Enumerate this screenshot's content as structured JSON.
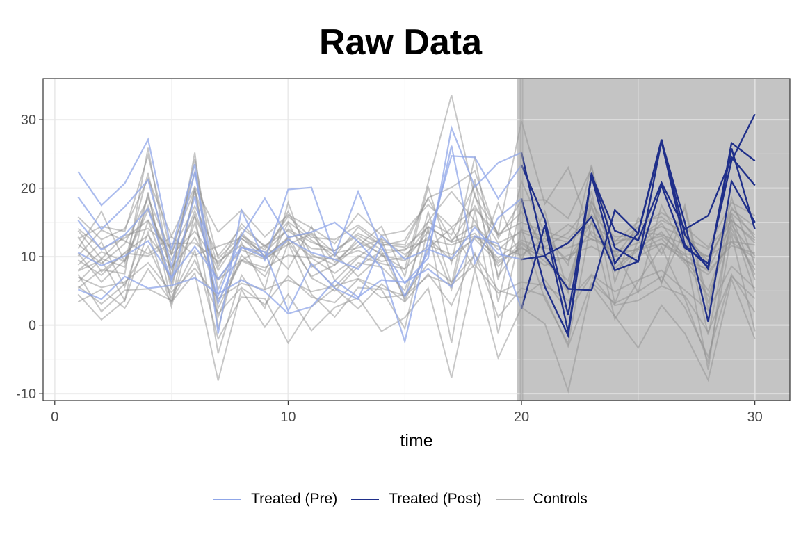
{
  "chart_data": {
    "type": "line",
    "title": "Raw Data",
    "xlabel": "time",
    "ylabel": "",
    "xlim": [
      -0.5,
      31.5
    ],
    "ylim": [
      -11,
      36
    ],
    "x_ticks": [
      0,
      10,
      20,
      30
    ],
    "y_ticks": [
      -10,
      0,
      10,
      20,
      30
    ],
    "grid": true,
    "legend_position": "bottom",
    "shaded_period": [
      19.8,
      31.5
    ],
    "intervention_line": 20,
    "colors": {
      "pre": "#8fa6e8",
      "post": "#1f2f8a",
      "controls": "#909090",
      "shade": "#c4c4c4"
    },
    "legend": [
      {
        "label": "Treated (Pre)",
        "color": "#8fa6e8"
      },
      {
        "label": "Treated (Post)",
        "color": "#1f2f8a"
      },
      {
        "label": "Controls",
        "color": "#b0b0b0"
      }
    ],
    "x": [
      1,
      2,
      3,
      4,
      5,
      6,
      7,
      8,
      9,
      10,
      11,
      12,
      13,
      14,
      15,
      16,
      17,
      18,
      19,
      20,
      21,
      22,
      23,
      24,
      25,
      26,
      27,
      28,
      29,
      30
    ],
    "treated_series": [
      {
        "values": [
          22.4,
          17.5,
          20.7,
          27.1,
          11.0,
          23.5,
          -1.2,
          16.8,
          9.5,
          19.8,
          20.1,
          10.2,
          19.5,
          11.4,
          6.1,
          9.8,
          28.8,
          20.2,
          23.7,
          25.2,
          10.2,
          12.0,
          15.8,
          8.0,
          9.3,
          20.4,
          11.3,
          9.0,
          24.0,
          30.8
        ]
      },
      {
        "values": [
          18.7,
          14.0,
          17.3,
          21.2,
          8.6,
          22.3,
          4.3,
          13.1,
          18.5,
          12.8,
          13.6,
          15.0,
          12.2,
          8.4,
          -2.4,
          12.4,
          24.7,
          24.5,
          18.5,
          23.4,
          15.4,
          1.5,
          21.8,
          9.0,
          13.5,
          27.1,
          13.2,
          8.2,
          26.6,
          24.0
        ]
      },
      {
        "values": [
          15.3,
          11.0,
          13.2,
          17.0,
          6.4,
          18.8,
          3.2,
          11.3,
          10.7,
          2.1,
          9.0,
          5.4,
          3.8,
          11.7,
          4.2,
          10.7,
          26.2,
          9.1,
          15.7,
          18.5,
          5.6,
          -1.5,
          21.9,
          13.8,
          12.4,
          20.8,
          14.0,
          16.0,
          24.5,
          20.4
        ]
      },
      {
        "values": [
          10.6,
          8.7,
          10.1,
          12.3,
          7.0,
          11.5,
          6.7,
          11.4,
          9.9,
          12.5,
          10.6,
          9.6,
          8.2,
          13.0,
          9.6,
          11.1,
          9.7,
          14.3,
          10.4,
          9.6,
          10.1,
          5.3,
          5.1,
          16.8,
          13.4,
          26.8,
          11.7,
          8.5,
          25.8,
          14.0
        ]
      },
      {
        "values": [
          5.2,
          3.8,
          7.1,
          5.4,
          5.8,
          6.9,
          4.6,
          6.6,
          4.9,
          1.7,
          2.7,
          6.5,
          4.1,
          6.6,
          6.3,
          8.2,
          5.6,
          13.0,
          11.9,
          2.4,
          14.6,
          -1.0,
          22.2,
          11.3,
          9.3,
          26.9,
          15.0,
          0.5,
          21.0,
          15.0
        ]
      }
    ],
    "control_series": [
      {
        "values": [
          7.9,
          9.5,
          3.6,
          19.4,
          3.1,
          20.0,
          1.2,
          10.2,
          7.1,
          13.0,
          6.9,
          5.0,
          8.6,
          10.8,
          3.9,
          16.5,
          6.0,
          21.3,
          3.4,
          17.5,
          10.2,
          5.4,
          19.6,
          3.1,
          12.5,
          6.3,
          13.8,
          -1.4,
          15.2,
          4.8
        ]
      },
      {
        "values": [
          11.2,
          16.6,
          9.2,
          22.2,
          7.2,
          24.3,
          5.2,
          13.5,
          10.0,
          16.6,
          10.3,
          8.8,
          11.6,
          14.4,
          7.1,
          20.2,
          9.1,
          24.6,
          6.6,
          21.0,
          13.4,
          8.8,
          23.4,
          6.3,
          15.7,
          10.4,
          17.0,
          2.3,
          18.6,
          8.8
        ]
      },
      {
        "values": [
          14.1,
          11.2,
          12.7,
          15.3,
          10.3,
          13.7,
          9.0,
          12.6,
          10.6,
          14.0,
          12.1,
          10.9,
          13.4,
          11.8,
          11.4,
          14.3,
          12.2,
          17.4,
          12.0,
          13.6,
          12.2,
          14.7,
          12.5,
          11.7,
          13.6,
          13.2,
          11.8,
          10.0,
          15.2,
          12.4
        ]
      },
      {
        "values": [
          7.0,
          5.5,
          6.3,
          9.1,
          4.8,
          8.3,
          3.9,
          6.1,
          5.2,
          6.6,
          4.9,
          5.7,
          6.8,
          5.4,
          4.3,
          7.2,
          5.9,
          8.8,
          4.7,
          6.3,
          5.8,
          3.6,
          7.4,
          4.9,
          6.6,
          8.0,
          5.1,
          2.2,
          8.6,
          5.4
        ]
      },
      {
        "values": [
          9.5,
          7.3,
          10.6,
          13.1,
          8.4,
          12.8,
          6.6,
          9.5,
          8.4,
          10.2,
          9.8,
          7.6,
          10.1,
          9.0,
          8.2,
          11.7,
          10.3,
          12.6,
          9.1,
          11.4,
          8.7,
          10.2,
          11.5,
          9.6,
          10.0,
          11.9,
          9.5,
          7.4,
          12.1,
          9.8
        ]
      },
      {
        "values": [
          3.4,
          5.2,
          2.5,
          8.2,
          3.4,
          7.6,
          -8.1,
          5.2,
          -0.3,
          4.5,
          -0.8,
          2.6,
          4.0,
          -0.9,
          1.1,
          5.4,
          -7.7,
          8.1,
          -4.8,
          2.6,
          0.2,
          -9.6,
          5.9,
          1.3,
          -3.3,
          2.9,
          -1.2,
          -8.0,
          6.7,
          -2.0
        ]
      },
      {
        "values": [
          5.4,
          8.1,
          7.5,
          25.9,
          6.6,
          25.2,
          -0.5,
          12.1,
          5.3,
          17.9,
          8.5,
          10.4,
          7.1,
          10.2,
          8.2,
          20.8,
          33.6,
          18.7,
          13.4,
          29.8,
          17.7,
          23.0,
          13.1,
          10.6,
          4.8,
          17.5,
          11.1,
          -6.5,
          17.2,
          12.7
        ]
      },
      {
        "values": [
          12.6,
          14.4,
          13.7,
          24.8,
          10.2,
          22.4,
          9.7,
          13.1,
          11.0,
          15.9,
          12.8,
          12.5,
          14.6,
          12.1,
          11.7,
          18.6,
          20.1,
          22.5,
          12.7,
          18.2,
          18.3,
          15.6,
          22.9,
          11.6,
          14.4,
          16.4,
          14.3,
          11.4,
          17.9,
          16.0
        ]
      },
      {
        "values": [
          4.5,
          0.8,
          3.6,
          13.6,
          2.7,
          16.2,
          -4.1,
          7.3,
          2.5,
          12.0,
          4.5,
          1.2,
          5.5,
          5.2,
          -0.5,
          14.3,
          -2.6,
          16.8,
          -1.2,
          14.1,
          3.8,
          -2.7,
          15.3,
          0.9,
          6.4,
          11.4,
          3.9,
          -5.4,
          13.2,
          -0.9
        ]
      },
      {
        "values": [
          8.8,
          12.1,
          5.6,
          15.2,
          6.1,
          14.9,
          3.6,
          9.4,
          11.7,
          8.2,
          14.4,
          6.5,
          9.9,
          12.5,
          3.5,
          11.2,
          14.2,
          8.2,
          17.8,
          9.5,
          16.6,
          4.8,
          18.3,
          10.0,
          14.4,
          6.1,
          17.5,
          3.2,
          16.1,
          6.6
        ]
      },
      {
        "values": [
          10.5,
          6.3,
          9.5,
          17.4,
          8.2,
          16.7,
          6.8,
          11.0,
          9.6,
          12.3,
          7.1,
          8.8,
          12.7,
          10.2,
          9.4,
          13.7,
          5.2,
          19.2,
          7.2,
          11.9,
          9.3,
          6.5,
          17.2,
          8.3,
          11.3,
          14.9,
          9.6,
          5.1,
          14.1,
          7.4
        ]
      },
      {
        "values": [
          13.8,
          9.7,
          13.1,
          14.1,
          11.3,
          19.8,
          8.5,
          14.8,
          11.4,
          15.1,
          12.4,
          10.1,
          14.3,
          11.6,
          12.4,
          18.5,
          12.4,
          14.6,
          11.0,
          13.9,
          13.0,
          12.1,
          14.8,
          12.2,
          15.1,
          15.8,
          13.1,
          9.4,
          16.3,
          13.2
        ]
      },
      {
        "values": [
          6.3,
          9.7,
          8.5,
          19.0,
          5.2,
          19.6,
          2.5,
          9.4,
          7.9,
          14.9,
          8.8,
          5.6,
          9.1,
          8.5,
          5.1,
          15.2,
          19.5,
          15.2,
          8.6,
          12.1,
          9.9,
          4.8,
          17.6,
          7.8,
          11.0,
          12.6,
          9.1,
          4.3,
          13.5,
          8.1
        ]
      },
      {
        "values": [
          10.1,
          13.9,
          12.3,
          10.4,
          12.9,
          10.2,
          11.5,
          12.7,
          9.7,
          11.8,
          13.3,
          9.2,
          12.2,
          10.4,
          11.1,
          12.5,
          11.7,
          13.0,
          9.8,
          12.4,
          11.2,
          11.3,
          12.6,
          10.8,
          12.0,
          13.0,
          10.4,
          10.1,
          12.2,
          11.7
        ]
      },
      {
        "values": [
          5.7,
          3.1,
          6.0,
          11.5,
          4.0,
          10.9,
          -2.0,
          4.1,
          3.9,
          -2.6,
          2.7,
          5.4,
          2.4,
          6.0,
          3.4,
          7.5,
          2.9,
          10.5,
          1.2,
          5.4,
          4.3,
          -3.1,
          6.2,
          3.2,
          4.9,
          7.1,
          2.6,
          -4.6,
          7.4,
          1.9
        ]
      },
      {
        "values": [
          8.0,
          10.7,
          9.3,
          16.8,
          9.5,
          15.9,
          8.0,
          13.1,
          10.1,
          12.6,
          10.0,
          9.6,
          10.9,
          9.3,
          9.9,
          14.4,
          12.1,
          13.4,
          9.4,
          11.2,
          10.1,
          9.6,
          14.9,
          10.0,
          11.2,
          13.6,
          9.4,
          8.2,
          14.6,
          10.1
        ]
      },
      {
        "values": [
          15.8,
          12.5,
          14.1,
          21.4,
          13.0,
          20.2,
          13.6,
          16.8,
          12.9,
          16.1,
          14.2,
          11.9,
          16.3,
          13.1,
          13.8,
          17.6,
          14.3,
          17.0,
          13.2,
          15.0,
          13.7,
          12.6,
          16.1,
          12.9,
          13.1,
          14.4,
          12.8,
          11.1,
          15.4,
          12.0
        ]
      },
      {
        "values": [
          7.4,
          2.0,
          5.1,
          5.3,
          3.6,
          9.5,
          1.7,
          5.5,
          3.0,
          7.2,
          4.1,
          3.3,
          6.7,
          4.0,
          4.4,
          9.0,
          6.3,
          10.3,
          5.1,
          4.0,
          6.6,
          2.0,
          7.2,
          2.9,
          3.6,
          5.7,
          4.3,
          -1.0,
          7.1,
          3.9
        ]
      },
      {
        "values": [
          11.8,
          9.0,
          11.9,
          18.5,
          10.6,
          17.4,
          10.1,
          14.2,
          11.6,
          13.8,
          11.2,
          10.9,
          13.1,
          11.0,
          10.9,
          15.1,
          13.2,
          20.5,
          13.2,
          16.5,
          11.4,
          13.5,
          18.0,
          12.3,
          12.7,
          15.3,
          13.6,
          8.8,
          16.9,
          14.4
        ]
      },
      {
        "values": [
          12.9,
          7.8,
          10.5,
          10.1,
          11.9,
          12.0,
          9.3,
          11.7,
          9.9,
          12.8,
          13.5,
          10.5,
          11.3,
          12.6,
          10.3,
          12.8,
          9.4,
          12.9,
          11.5,
          10.2,
          12.7,
          9.4,
          13.7,
          10.7,
          11.0,
          11.9,
          10.2,
          7.9,
          11.6,
          10.5
        ]
      }
    ]
  }
}
